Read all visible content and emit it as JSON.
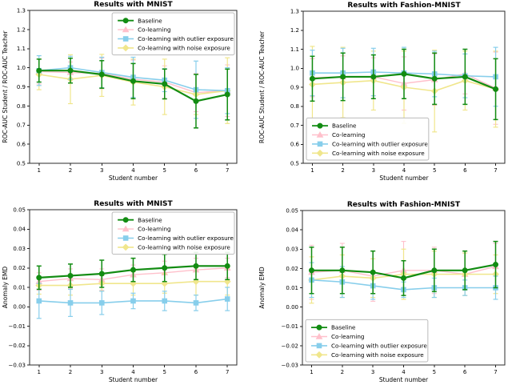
{
  "figure": {
    "background": "#ffffff"
  },
  "legend_labels": [
    "Baseline",
    "Co-learning",
    "Co-learning with outlier exposure",
    "Co-learning with noise exposure"
  ],
  "colors": {
    "baseline": "#128c12",
    "co_learning": "#ffc0cb",
    "outlier_exposure": "#87ceeb",
    "noise_exposure": "#f0e68c"
  },
  "chart_data": [
    {
      "id": "roc-mnist",
      "type": "line",
      "title": "Results with MNIST",
      "xlabel": "Student number",
      "ylabel": "ROC-AUC Student / ROC-AUC Teacher",
      "x": [
        1,
        2,
        3,
        4,
        5,
        6,
        7
      ],
      "xlim": [
        0.7,
        7.3
      ],
      "ylim": [
        0.5,
        1.3
      ],
      "ytick_step": 0.1,
      "ytick_decimals": 1,
      "grid": false,
      "legend_position": "upper-right",
      "series": [
        {
          "name": "Baseline",
          "color": "#128c12",
          "marker": "circle",
          "values": [
            0.985,
            0.985,
            0.965,
            0.93,
            0.915,
            0.825,
            0.86
          ],
          "err": [
            0.06,
            0.065,
            0.072,
            0.092,
            0.078,
            0.14,
            0.133
          ]
        },
        {
          "name": "Co-learning",
          "color": "#ffc0cb",
          "marker": "triangle",
          "values": [
            0.98,
            0.975,
            0.97,
            0.94,
            0.925,
            0.87,
            0.88
          ],
          "err": [
            0.065,
            0.055,
            0.08,
            0.1,
            0.085,
            0.1,
            0.135
          ]
        },
        {
          "name": "Co-learning with outlier exposure",
          "color": "#87ceeb",
          "marker": "square",
          "values": [
            0.985,
            1.0,
            0.975,
            0.95,
            0.935,
            0.885,
            0.88
          ],
          "err": [
            0.078,
            0.06,
            0.08,
            0.105,
            0.06,
            0.15,
            0.12
          ]
        },
        {
          "name": "Co-learning with noise exposure",
          "color": "#f0e68c",
          "marker": "diamond",
          "values": [
            0.965,
            0.94,
            0.96,
            0.925,
            0.9,
            0.86,
            0.88
          ],
          "err": [
            0.08,
            0.128,
            0.11,
            0.12,
            0.145,
            0.105,
            0.172
          ]
        }
      ]
    },
    {
      "id": "roc-fashion-mnist",
      "type": "line",
      "title": "Results with Fashion-MNIST",
      "xlabel": "Student number",
      "ylabel": "ROC-AUC Student / ROC-AUC Teacher",
      "x": [
        1,
        2,
        3,
        4,
        5,
        6,
        7
      ],
      "xlim": [
        0.7,
        7.3
      ],
      "ylim": [
        0.5,
        1.3
      ],
      "ytick_step": 0.1,
      "ytick_decimals": 1,
      "grid": false,
      "legend_position": "lower-left",
      "series": [
        {
          "name": "Baseline",
          "color": "#128c12",
          "marker": "circle",
          "values": [
            0.945,
            0.955,
            0.955,
            0.97,
            0.945,
            0.955,
            0.89
          ],
          "err": [
            0.118,
            0.125,
            0.115,
            0.13,
            0.135,
            0.145,
            0.16
          ]
        },
        {
          "name": "Co-learning",
          "color": "#ffc0cb",
          "marker": "triangle",
          "values": [
            0.95,
            0.955,
            0.955,
            0.92,
            0.94,
            0.97,
            0.895
          ],
          "err": [
            0.1,
            0.11,
            0.1,
            0.14,
            0.135,
            0.105,
            0.19
          ]
        },
        {
          "name": "Co-learning with outlier exposure",
          "color": "#87ceeb",
          "marker": "square",
          "values": [
            0.975,
            0.975,
            0.98,
            0.975,
            0.97,
            0.96,
            0.955
          ],
          "err": [
            0.12,
            0.13,
            0.125,
            0.135,
            0.12,
            0.115,
            0.155
          ]
        },
        {
          "name": "Co-learning with noise exposure",
          "color": "#f0e68c",
          "marker": "diamond",
          "values": [
            0.915,
            0.925,
            0.935,
            0.9,
            0.88,
            0.935,
            0.89
          ],
          "err": [
            0.2,
            0.185,
            0.155,
            0.19,
            0.215,
            0.155,
            0.2
          ]
        }
      ]
    },
    {
      "id": "emd-mnist",
      "type": "line",
      "title": "Results with MNIST",
      "xlabel": "Student number",
      "ylabel": "Anomaly EMD",
      "x": [
        1,
        2,
        3,
        4,
        5,
        6,
        7
      ],
      "xlim": [
        0.7,
        7.3
      ],
      "ylim": [
        -0.03,
        0.05
      ],
      "ytick_step": 0.01,
      "ytick_decimals": 2,
      "grid": false,
      "legend_position": "upper-right",
      "series": [
        {
          "name": "Baseline",
          "color": "#128c12",
          "marker": "circle",
          "values": [
            0.015,
            0.016,
            0.017,
            0.019,
            0.02,
            0.021,
            0.021
          ],
          "err": [
            0.006,
            0.006,
            0.007,
            0.006,
            0.007,
            0.007,
            0.007
          ]
        },
        {
          "name": "Co-learning",
          "color": "#ffc0cb",
          "marker": "triangle",
          "values": [
            0.013,
            0.0145,
            0.014,
            0.0165,
            0.0175,
            0.019,
            0.02
          ],
          "err": [
            0.0045,
            0.005,
            0.0055,
            0.005,
            0.006,
            0.006,
            0.005
          ]
        },
        {
          "name": "Co-learning with outlier exposure",
          "color": "#87ceeb",
          "marker": "square",
          "values": [
            0.003,
            0.002,
            0.002,
            0.003,
            0.003,
            0.002,
            0.004
          ],
          "err": [
            0.009,
            0.007,
            0.006,
            0.004,
            0.005,
            0.004,
            0.006
          ]
        },
        {
          "name": "Co-learning with noise exposure",
          "color": "#f0e68c",
          "marker": "diamond",
          "values": [
            0.011,
            0.011,
            0.012,
            0.012,
            0.012,
            0.013,
            0.013
          ],
          "err": [
            0.0045,
            0.005,
            0.004,
            0.006,
            0.005,
            0.007,
            0.007
          ]
        }
      ]
    },
    {
      "id": "emd-fashion-mnist",
      "type": "line",
      "title": "Results with Fashion-MNIST",
      "xlabel": "Student number",
      "ylabel": "Anomaly EMD",
      "x": [
        1,
        2,
        3,
        4,
        5,
        6,
        7
      ],
      "xlim": [
        0.7,
        7.3
      ],
      "ylim": [
        -0.03,
        0.05
      ],
      "ytick_step": 0.01,
      "ytick_decimals": 2,
      "grid": false,
      "legend_position": "lower-left",
      "series": [
        {
          "name": "Baseline",
          "color": "#128c12",
          "marker": "circle",
          "values": [
            0.019,
            0.019,
            0.018,
            0.015,
            0.019,
            0.019,
            0.022
          ],
          "err": [
            0.012,
            0.012,
            0.011,
            0.009,
            0.011,
            0.01,
            0.012
          ]
        },
        {
          "name": "Co-learning",
          "color": "#ffc0cb",
          "marker": "triangle",
          "values": [
            0.018,
            0.019,
            0.016,
            0.019,
            0.019,
            0.017,
            0.021
          ],
          "err": [
            0.014,
            0.014,
            0.013,
            0.015,
            0.012,
            0.011,
            0.012
          ]
        },
        {
          "name": "Co-learning with outlier exposure",
          "color": "#87ceeb",
          "marker": "square",
          "values": [
            0.014,
            0.013,
            0.011,
            0.009,
            0.01,
            0.01,
            0.01
          ],
          "err": [
            0.009,
            0.008,
            0.007,
            0.004,
            0.005,
            0.004,
            0.006
          ]
        },
        {
          "name": "Co-learning with noise exposure",
          "color": "#f0e68c",
          "marker": "diamond",
          "values": [
            0.014,
            0.016,
            0.015,
            0.017,
            0.017,
            0.017,
            0.017
          ],
          "err": [
            0.012,
            0.011,
            0.01,
            0.013,
            0.012,
            0.011,
            0.01
          ]
        }
      ]
    }
  ]
}
